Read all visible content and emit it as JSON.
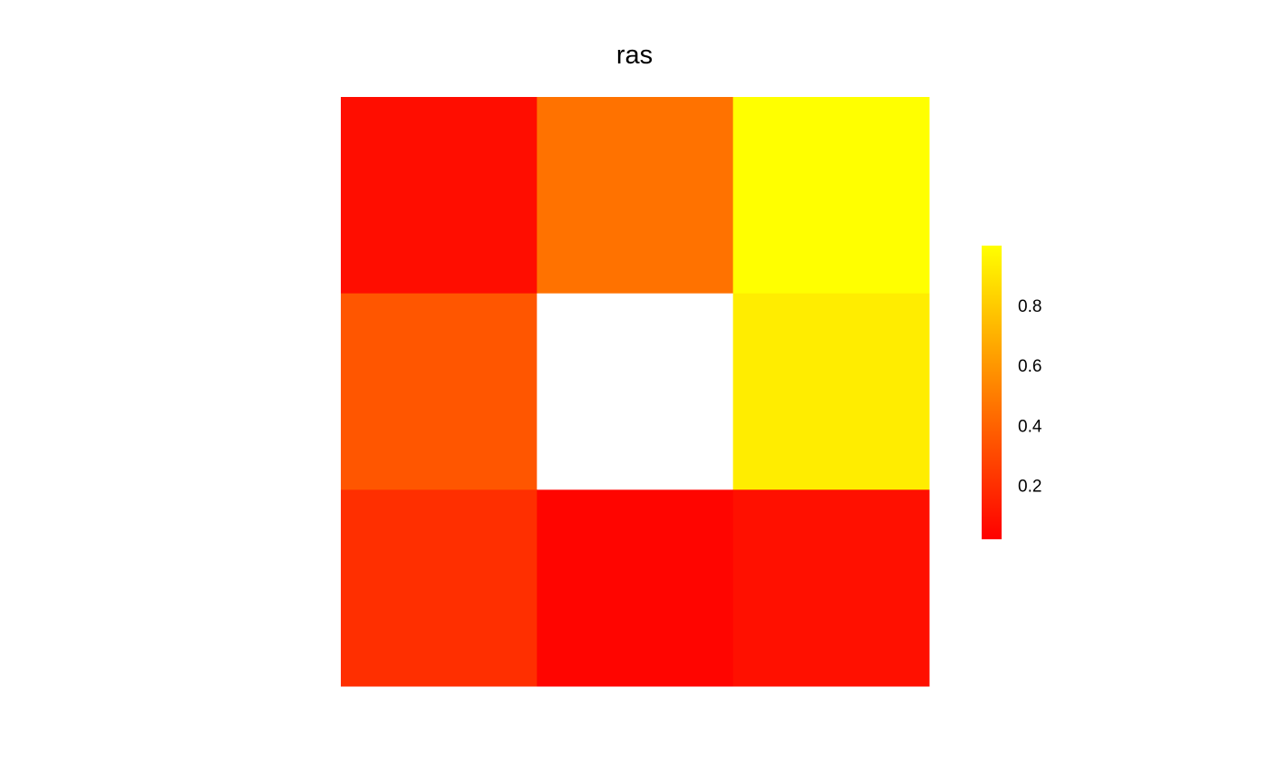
{
  "chart_data": {
    "type": "heatmap",
    "title": "ras",
    "rows": 3,
    "cols": 3,
    "values": [
      [
        0.07,
        0.46,
        1.0
      ],
      [
        0.35,
        null,
        0.93
      ],
      [
        0.2,
        0.04,
        0.08
      ]
    ],
    "legend": {
      "placement": "right",
      "min": 0.02,
      "max": 1.0,
      "ticks": [
        0.2,
        0.4,
        0.6,
        0.8
      ],
      "tick_labels": [
        "0.2",
        "0.4",
        "0.6",
        "0.8"
      ]
    },
    "colormap": {
      "low": "#ff0000",
      "high": "#ffff00",
      "na": "#ffffff"
    }
  }
}
